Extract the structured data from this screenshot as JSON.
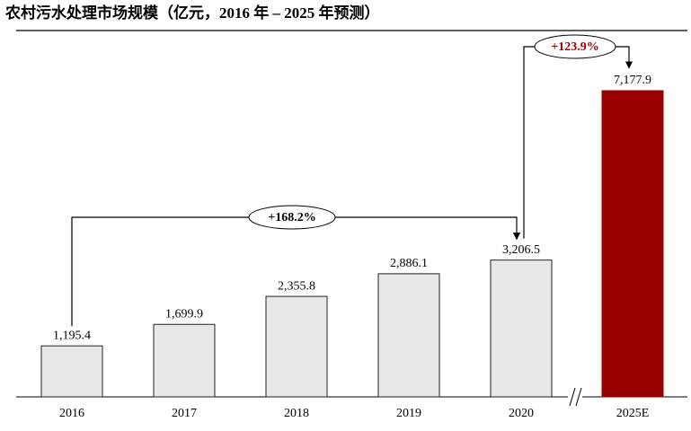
{
  "chart_data": {
    "type": "bar",
    "title": "农村污水处理市场规模（亿元，2016 年 – 2025 年预测）",
    "categories": [
      "2016",
      "2017",
      "2018",
      "2019",
      "2020",
      "2025E"
    ],
    "values": [
      1195.4,
      1699.9,
      2355.8,
      2886.1,
      3206.5,
      7177.9
    ],
    "value_labels": [
      "1,195.4",
      "1,699.9",
      "2,355.8",
      "2,886.1",
      "3,206.5",
      "7,177.9"
    ],
    "colors": [
      "#e8e8e8",
      "#e8e8e8",
      "#e8e8e8",
      "#e8e8e8",
      "#e8e8e8",
      "#990000"
    ],
    "annotations": [
      "+168.2%",
      "+123.9%"
    ]
  }
}
